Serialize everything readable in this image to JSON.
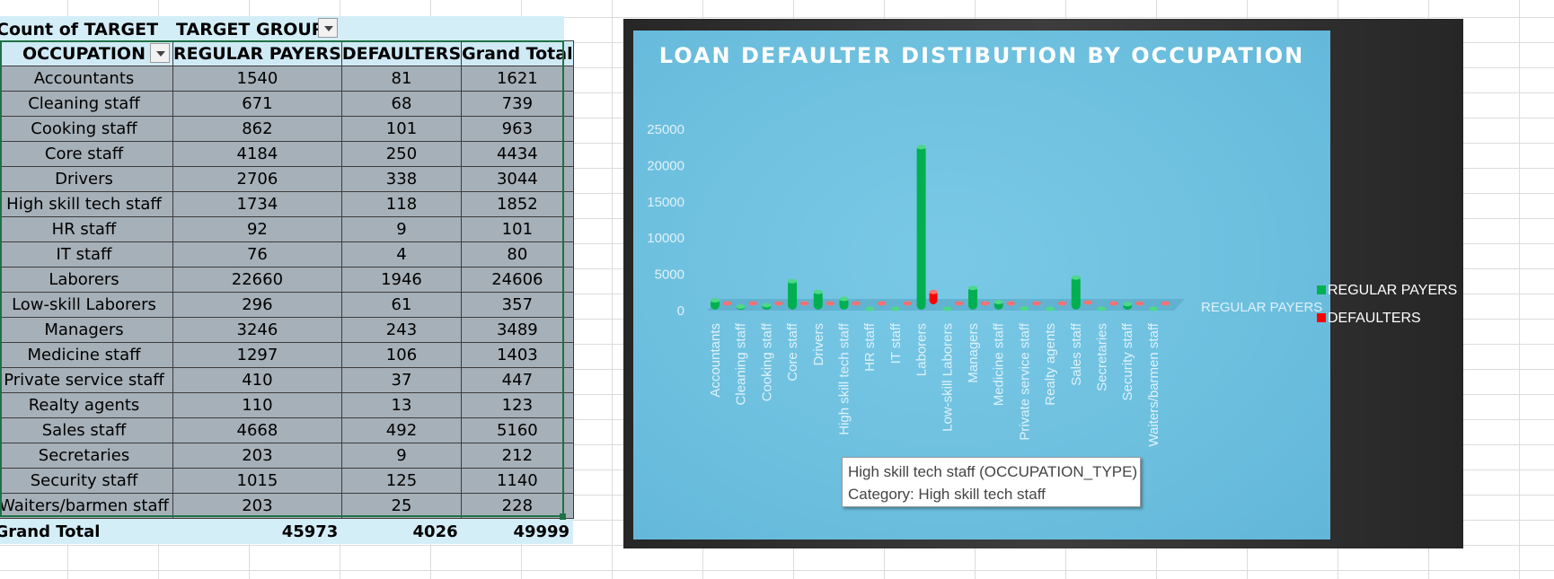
{
  "pivot": {
    "count_label": "Count of TARGET",
    "group_label": "TARGET GROUP",
    "headers": [
      "OCCUPATION",
      "REGULAR PAYERS",
      "DEFAULTERS",
      "Grand Total"
    ],
    "rows": [
      [
        "Accountants",
        "1540",
        "81",
        "1621"
      ],
      [
        "Cleaning staff",
        "671",
        "68",
        "739"
      ],
      [
        "Cooking staff",
        "862",
        "101",
        "963"
      ],
      [
        "Core staff",
        "4184",
        "250",
        "4434"
      ],
      [
        "Drivers",
        "2706",
        "338",
        "3044"
      ],
      [
        "High skill tech staff",
        "1734",
        "118",
        "1852"
      ],
      [
        "HR staff",
        "92",
        "9",
        "101"
      ],
      [
        "IT staff",
        "76",
        "4",
        "80"
      ],
      [
        "Laborers",
        "22660",
        "1946",
        "24606"
      ],
      [
        "Low-skill Laborers",
        "296",
        "61",
        "357"
      ],
      [
        "Managers",
        "3246",
        "243",
        "3489"
      ],
      [
        "Medicine staff",
        "1297",
        "106",
        "1403"
      ],
      [
        "Private service staff",
        "410",
        "37",
        "447"
      ],
      [
        "Realty agents",
        "110",
        "13",
        "123"
      ],
      [
        "Sales staff",
        "4668",
        "492",
        "5160"
      ],
      [
        "Secretaries",
        "203",
        "9",
        "212"
      ],
      [
        "Security staff",
        "1015",
        "125",
        "1140"
      ],
      [
        "Waiters/barmen staff",
        "203",
        "25",
        "228"
      ]
    ],
    "total": [
      "Grand Total",
      "45973",
      "4026",
      "49999"
    ]
  },
  "chart_data": {
    "type": "bar",
    "title": "LOAN DEFAULTER DISTIBUTION BY OCCUPATION",
    "categories": [
      "Accountants",
      "Cleaning staff",
      "Cooking staff",
      "Core staff",
      "Drivers",
      "High skill tech staff",
      "HR staff",
      "IT staff",
      "Laborers",
      "Low-skill Laborers",
      "Managers",
      "Medicine staff",
      "Private service staff",
      "Realty agents",
      "Sales staff",
      "Secretaries",
      "Security staff",
      "Waiters/barmen staff"
    ],
    "series": [
      {
        "name": "REGULAR PAYERS",
        "color": "#00b050",
        "values": [
          1540,
          671,
          862,
          4184,
          2706,
          1734,
          92,
          76,
          22660,
          296,
          3246,
          1297,
          410,
          110,
          4668,
          203,
          1015,
          203
        ]
      },
      {
        "name": "DEFAULTERS",
        "color": "#ff0000",
        "values": [
          81,
          68,
          101,
          250,
          338,
          118,
          9,
          4,
          1946,
          61,
          243,
          106,
          37,
          13,
          492,
          9,
          125,
          25
        ]
      }
    ],
    "y_ticks": [
      "0",
      "5000",
      "10000",
      "15000",
      "20000",
      "25000"
    ],
    "ylim": [
      0,
      25000
    ],
    "depth_axis_label": "REGULAR PAYERS",
    "legend_position": "right",
    "grid": false
  },
  "tooltip": {
    "line1": "High skill tech staff (OCCUPATION_TYPE)",
    "line2": "Category: High skill tech staff"
  },
  "colors": {
    "chart_area": "#6ec0df",
    "chart_frame": "#333333",
    "header_fill": "#d4eef8",
    "row_fill": "#a6b0b8"
  }
}
